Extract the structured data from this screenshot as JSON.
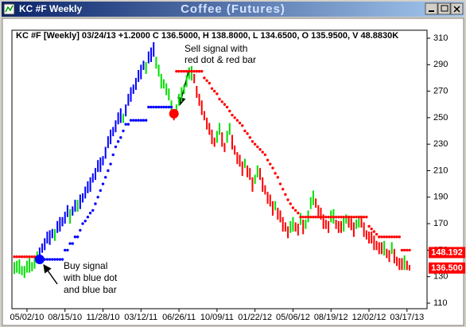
{
  "window_title": "KC #F Weekly",
  "chart_data": {
    "type": "price-bars",
    "title": "Coffee (Futures)",
    "info": "KC #F [Weekly] 03/24/13 +1.2000 C 136.5000, H 138.8000, L 134.6500, O 135.9500, V 48.8830K",
    "categories": [
      null,
      null,
      null,
      null,
      null,
      "05/02/10",
      null,
      null,
      null,
      null,
      null,
      null,
      null,
      null,
      null,
      null,
      null,
      null,
      null,
      null,
      "08/15/10",
      null,
      null,
      null,
      null,
      null,
      null,
      null,
      null,
      null,
      null,
      null,
      null,
      null,
      null,
      "11/28/10",
      null,
      null,
      null,
      null,
      null,
      null,
      null,
      null,
      null,
      null,
      null,
      null,
      null,
      null,
      "03/12/11",
      null,
      null,
      null,
      null,
      null,
      null,
      null,
      null,
      null,
      null,
      null,
      null,
      null,
      null,
      "06/26/11",
      null,
      null,
      null,
      null,
      null,
      null,
      null,
      null,
      null,
      null,
      null,
      null,
      null,
      null,
      "10/09/11",
      null,
      null,
      null,
      null,
      null,
      null,
      null,
      null,
      null,
      null,
      null,
      null,
      null,
      null,
      "01/22/12",
      null,
      null,
      null,
      null,
      null,
      null,
      null,
      null,
      null,
      null,
      null,
      null,
      null,
      null,
      "05/06/12",
      null,
      null,
      null,
      null,
      null,
      null,
      null,
      null,
      null,
      null,
      null,
      null,
      null,
      null,
      "08/19/12",
      null,
      null,
      null,
      null,
      null,
      null,
      null,
      null,
      null,
      null,
      null,
      null,
      null,
      null,
      "12/02/12",
      null,
      null,
      null,
      null,
      null,
      null,
      null,
      null,
      null,
      null,
      null,
      null,
      null,
      null,
      "03/17/13",
      null
    ],
    "high": [
      141,
      142,
      143,
      138,
      138,
      142,
      144,
      141,
      145,
      149,
      152,
      155,
      159,
      164,
      165,
      166,
      166,
      172,
      175,
      175,
      179,
      184,
      181,
      183,
      188,
      188,
      192,
      193,
      198,
      202,
      205,
      208,
      212,
      218,
      220,
      221,
      228,
      236,
      241,
      243,
      248,
      254,
      257,
      253,
      260,
      268,
      273,
      275,
      280,
      286,
      290,
      293,
      292,
      300,
      303,
      307,
      296,
      290,
      283,
      279,
      276,
      272,
      263,
      255,
      260,
      268,
      273,
      275,
      282,
      288,
      289,
      283,
      274,
      268,
      263,
      255,
      250,
      246,
      241,
      235,
      240,
      246,
      239,
      231,
      240,
      246,
      237,
      229,
      224,
      222,
      217,
      219,
      214,
      212,
      205,
      207,
      214,
      212,
      205,
      199,
      194,
      192,
      187,
      187,
      182,
      180,
      175,
      171,
      168,
      172,
      175,
      171,
      170,
      178,
      173,
      173,
      180,
      190,
      195,
      189,
      184,
      182,
      177,
      173,
      172,
      180,
      181,
      173,
      172,
      172,
      175,
      177,
      176,
      174,
      171,
      173,
      176,
      176,
      171,
      165,
      164,
      164,
      161,
      157,
      156,
      156,
      157,
      151,
      150,
      156,
      151,
      145,
      144,
      144,
      146,
      142,
      138.8
    ],
    "low": [
      132,
      133,
      132,
      131,
      129,
      133,
      133,
      134,
      136,
      140,
      141,
      148,
      150,
      155,
      154,
      159,
      157,
      163,
      164,
      168,
      170,
      175,
      170,
      176,
      179,
      179,
      181,
      186,
      189,
      193,
      194,
      201,
      203,
      209,
      209,
      214,
      219,
      227,
      230,
      236,
      239,
      245,
      246,
      246,
      251,
      259,
      262,
      268,
      271,
      277,
      279,
      286,
      283,
      291,
      292,
      296,
      287,
      281,
      272,
      272,
      267,
      263,
      252,
      248,
      251,
      259,
      262,
      268,
      273,
      279,
      278,
      276,
      265,
      259,
      252,
      248,
      241,
      237,
      230,
      228,
      231,
      237,
      228,
      224,
      231,
      237,
      226,
      222,
      215,
      213,
      206,
      212,
      205,
      203,
      194,
      200,
      205,
      203,
      194,
      192,
      185,
      183,
      176,
      180,
      173,
      171,
      164,
      164,
      159,
      163,
      164,
      164,
      161,
      169,
      162,
      166,
      171,
      181,
      184,
      182,
      175,
      173,
      166,
      166,
      163,
      171,
      170,
      166,
      163,
      163,
      164,
      170,
      167,
      165,
      160,
      166,
      167,
      167,
      160,
      158,
      155,
      155,
      150,
      150,
      147,
      147,
      146,
      144,
      141,
      147,
      140,
      138,
      135,
      135,
      135,
      135,
      134.65
    ],
    "bar_colors": [
      "#00e000",
      "#00e000",
      "#00e000",
      "#00e000",
      "#00e000",
      "#00e000",
      "#00e000",
      "#00e000",
      "#00e000",
      "#00e000",
      "#0000ff",
      "#0000ff",
      "#0000ff",
      "#0000ff",
      "#0000ff",
      "#0000ff",
      "#00e000",
      "#0000ff",
      "#0000ff",
      "#0000ff",
      "#0000ff",
      "#0000ff",
      "#00e000",
      "#0000ff",
      "#0000ff",
      "#00e000",
      "#0000ff",
      "#0000ff",
      "#0000ff",
      "#0000ff",
      "#0000ff",
      "#0000ff",
      "#0000ff",
      "#0000ff",
      "#0000ff",
      "#0000ff",
      "#0000ff",
      "#0000ff",
      "#0000ff",
      "#0000ff",
      "#0000ff",
      "#0000ff",
      "#0000ff",
      "#00e000",
      "#0000ff",
      "#0000ff",
      "#0000ff",
      "#0000ff",
      "#0000ff",
      "#0000ff",
      "#0000ff",
      "#0000ff",
      "#00e000",
      "#0000ff",
      "#0000ff",
      "#0000ff",
      "#00e000",
      "#00e000",
      "#00e000",
      "#00e000",
      "#00e000",
      "#00e000",
      "#00e000",
      "#ff0000",
      "#00e000",
      "#00e000",
      "#00e000",
      "#00e000",
      "#00e000",
      "#00e000",
      "#00e000",
      "#ff0000",
      "#ff0000",
      "#ff0000",
      "#ff0000",
      "#ff0000",
      "#ff0000",
      "#ff0000",
      "#ff0000",
      "#ff0000",
      "#00e000",
      "#00e000",
      "#ff0000",
      "#ff0000",
      "#00e000",
      "#00e000",
      "#ff0000",
      "#ff0000",
      "#ff0000",
      "#ff0000",
      "#ff0000",
      "#00e000",
      "#ff0000",
      "#ff0000",
      "#ff0000",
      "#00e000",
      "#00e000",
      "#ff0000",
      "#ff0000",
      "#ff0000",
      "#ff0000",
      "#ff0000",
      "#ff0000",
      "#00e000",
      "#ff0000",
      "#ff0000",
      "#ff0000",
      "#ff0000",
      "#ff0000",
      "#00e000",
      "#00e000",
      "#ff0000",
      "#ff0000",
      "#00e000",
      "#ff0000",
      "#00e000",
      "#00e000",
      "#00e000",
      "#00e000",
      "#ff0000",
      "#ff0000",
      "#ff0000",
      "#ff0000",
      "#ff0000",
      "#ff0000",
      "#00e000",
      "#00e000",
      "#ff0000",
      "#ff0000",
      "#ff0000",
      "#00e000",
      "#00e000",
      "#ff0000",
      "#ff0000",
      "#ff0000",
      "#00e000",
      "#00e000",
      "#ff0000",
      "#ff0000",
      "#ff0000",
      "#ff0000",
      "#ff0000",
      "#ff0000",
      "#ff0000",
      "#ff0000",
      "#ff0000",
      "#00e000",
      "#ff0000",
      "#ff0000",
      "#00e000",
      "#ff0000",
      "#ff0000",
      "#ff0000",
      "#ff0000",
      "#00e000",
      "#ff0000",
      "#ff0000"
    ],
    "stop_dots": {
      "values": [
        145,
        145,
        145,
        145,
        145,
        145,
        145,
        145,
        145,
        145,
        143,
        143,
        143,
        143,
        143,
        143,
        143,
        143,
        143,
        143,
        150,
        150,
        155,
        155,
        160,
        160,
        165,
        170,
        172,
        175,
        178,
        180,
        185,
        190,
        195,
        200,
        205,
        210,
        215,
        222,
        228,
        232,
        235,
        240,
        245,
        245,
        248,
        248,
        248,
        248,
        248,
        248,
        248,
        258,
        258,
        258,
        258,
        258,
        258,
        258,
        258,
        258,
        258,
        253,
        285,
        285,
        285,
        285,
        285,
        285,
        285,
        285,
        285,
        285,
        285,
        280,
        278,
        276,
        272,
        270,
        268,
        264,
        262,
        260,
        258,
        255,
        252,
        250,
        248,
        246,
        244,
        240,
        238,
        235,
        232,
        230,
        228,
        226,
        224,
        222,
        218,
        215,
        212,
        208,
        205,
        200,
        196,
        192,
        188,
        185,
        182,
        180,
        178,
        175,
        175,
        175,
        175,
        175,
        175,
        175,
        175,
        175,
        175,
        175,
        175,
        175,
        175,
        175,
        175,
        175,
        175,
        175,
        175,
        175,
        175,
        175,
        175,
        175,
        175,
        175,
        168,
        166,
        164,
        162,
        160,
        160,
        160,
        160,
        160,
        160,
        160,
        160,
        160,
        150,
        150,
        150,
        150
      ],
      "colors": [
        "#ff0000",
        "#ff0000",
        "#ff0000",
        "#ff0000",
        "#ff0000",
        "#ff0000",
        "#ff0000",
        "#ff0000",
        "#ff0000",
        "#ff0000",
        "#0000ff",
        "#0000ff",
        "#0000ff",
        "#0000ff",
        "#0000ff",
        "#0000ff",
        "#0000ff",
        "#0000ff",
        "#0000ff",
        "#0000ff",
        "#0000ff",
        "#0000ff",
        "#0000ff",
        "#0000ff",
        "#0000ff",
        "#0000ff",
        "#0000ff",
        "#0000ff",
        "#0000ff",
        "#0000ff",
        "#0000ff",
        "#0000ff",
        "#0000ff",
        "#0000ff",
        "#0000ff",
        "#0000ff",
        "#0000ff",
        "#0000ff",
        "#0000ff",
        "#0000ff",
        "#0000ff",
        "#0000ff",
        "#0000ff",
        "#0000ff",
        "#0000ff",
        "#0000ff",
        "#0000ff",
        "#0000ff",
        "#0000ff",
        "#0000ff",
        "#0000ff",
        "#0000ff",
        "#0000ff",
        "#0000ff",
        "#0000ff",
        "#0000ff",
        "#0000ff",
        "#0000ff",
        "#0000ff",
        "#0000ff",
        "#0000ff",
        "#0000ff",
        "#0000ff",
        "#ff0000",
        "#ff0000",
        "#ff0000",
        "#ff0000",
        "#ff0000",
        "#ff0000",
        "#ff0000",
        "#ff0000",
        "#ff0000",
        "#ff0000",
        "#ff0000",
        "#ff0000",
        "#ff0000",
        "#ff0000",
        "#ff0000",
        "#ff0000",
        "#ff0000",
        "#ff0000",
        "#ff0000",
        "#ff0000",
        "#ff0000",
        "#ff0000",
        "#ff0000",
        "#ff0000",
        "#ff0000",
        "#ff0000",
        "#ff0000",
        "#ff0000",
        "#ff0000",
        "#ff0000",
        "#ff0000",
        "#ff0000",
        "#ff0000",
        "#ff0000",
        "#ff0000",
        "#ff0000",
        "#ff0000",
        "#ff0000",
        "#ff0000",
        "#ff0000",
        "#ff0000",
        "#ff0000",
        "#ff0000",
        "#ff0000",
        "#ff0000",
        "#ff0000",
        "#ff0000",
        "#ff0000",
        "#ff0000",
        "#ff0000",
        "#ff0000",
        "#ff0000",
        "#ff0000",
        "#ff0000",
        "#ff0000",
        "#ff0000",
        "#ff0000",
        "#ff0000",
        "#ff0000",
        "#ff0000",
        "#ff0000",
        "#ff0000",
        "#ff0000",
        "#ff0000",
        "#ff0000",
        "#ff0000",
        "#ff0000",
        "#ff0000",
        "#ff0000",
        "#ff0000",
        "#ff0000",
        "#ff0000",
        "#ff0000",
        "#ff0000",
        "#ff0000",
        "#ff0000",
        "#ff0000",
        "#ff0000",
        "#ff0000",
        "#ff0000",
        "#ff0000",
        "#ff0000",
        "#ff0000",
        "#ff0000",
        "#ff0000",
        "#ff0000",
        "#ff0000",
        "#ff0000",
        "#ff0000",
        "#ff0000",
        "#ff0000",
        "#ff0000",
        "#ff0000",
        "#ff0000"
      ]
    },
    "ylim": [
      105.8,
      316
    ],
    "yticks": [
      110,
      130,
      150,
      170,
      190,
      210,
      230,
      250,
      270,
      290,
      310
    ],
    "price_labels": [
      {
        "value": 148.192,
        "label": "148.192",
        "color": "#ff0000"
      },
      {
        "value": 136.5,
        "label": "136.500",
        "color": "#ff0000"
      }
    ],
    "annotations": [
      {
        "lines": [
          "Sell signal with",
          "red dot & red bar"
        ]
      },
      {
        "lines": [
          "Buy signal",
          "with blue dot",
          "and blue bar"
        ]
      }
    ]
  }
}
